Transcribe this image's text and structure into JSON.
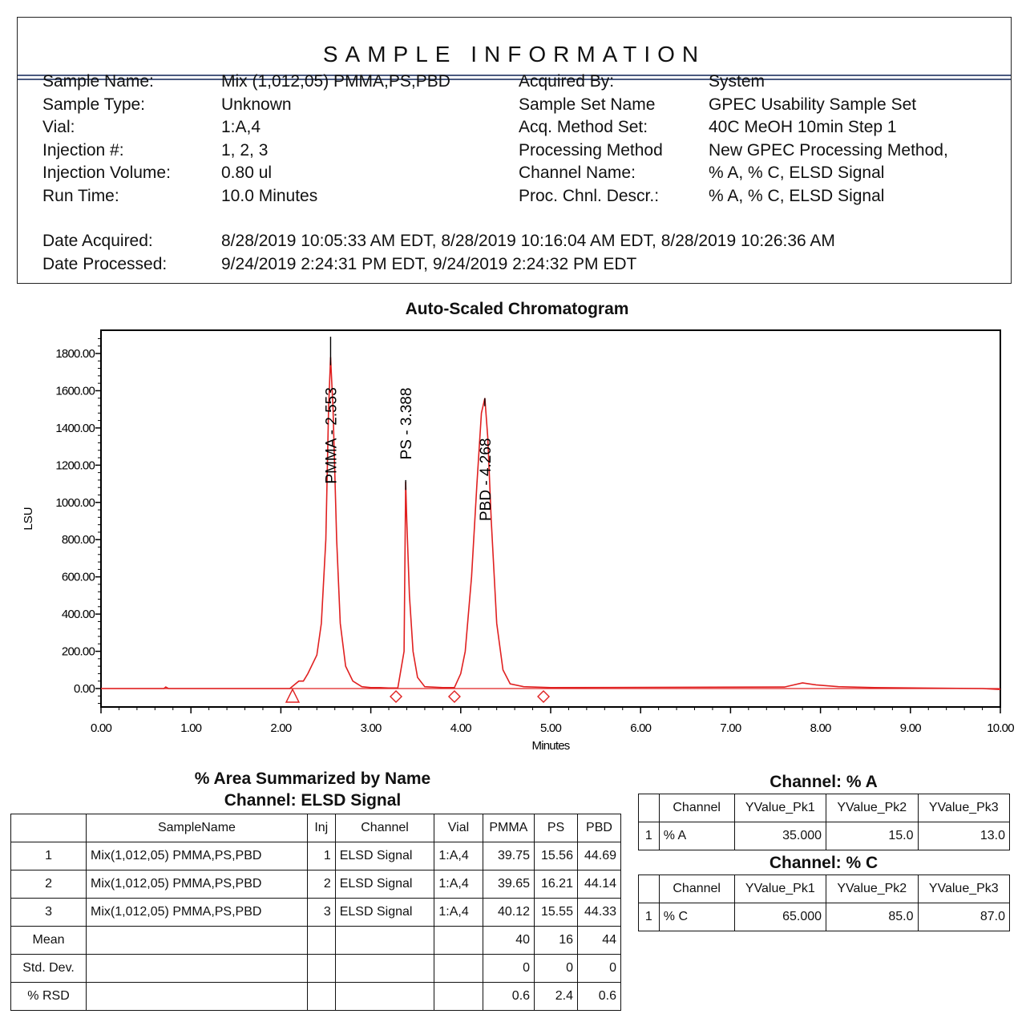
{
  "sample_info": {
    "title": "SAMPLE INFORMATION",
    "left": [
      {
        "label": "Sample Name:",
        "value": "Mix (1,012,05) PMMA,PS,PBD"
      },
      {
        "label": "Sample Type:",
        "value": "Unknown"
      },
      {
        "label": "Vial:",
        "value": "1:A,4"
      },
      {
        "label": "Injection #:",
        "value": "1, 2, 3"
      },
      {
        "label": "Injection Volume:",
        "value": "0.80 ul"
      },
      {
        "label": "Run Time:",
        "value": "10.0 Minutes"
      }
    ],
    "right": [
      {
        "label": "Acquired By:",
        "value": "System"
      },
      {
        "label": "Sample Set Name",
        "value": "GPEC Usability Sample Set"
      },
      {
        "label": "Acq. Method Set:",
        "value": "40C MeOH 10min Step 1"
      },
      {
        "label": "Processing Method",
        "value": "New GPEC Processing Method,"
      },
      {
        "label": "Channel Name:",
        "value": "% A, % C, ELSD Signal"
      },
      {
        "label": "Proc. Chnl. Descr.:",
        "value": "% A, % C, ELSD Signal"
      }
    ],
    "dates": [
      {
        "label": "Date Acquired:",
        "value": "8/28/2019 10:05:33 AM EDT, 8/28/2019 10:16:04 AM EDT, 8/28/2019 10:26:36 AM"
      },
      {
        "label": "Date Processed:",
        "value": "9/24/2019 2:24:31 PM EDT, 9/24/2019 2:24:32 PM EDT"
      }
    ]
  },
  "chart_data": {
    "type": "line",
    "title": "Auto-Scaled Chromatogram",
    "xlabel": "Minutes",
    "ylabel": "LSU",
    "xlim": [
      0,
      10
    ],
    "ylim": [
      -100,
      1950
    ],
    "x_ticks": [
      "0.00",
      "1.00",
      "2.00",
      "3.00",
      "4.00",
      "5.00",
      "6.00",
      "7.00",
      "8.00",
      "9.00",
      "10.00"
    ],
    "y_ticks": [
      "0.00",
      "200.00",
      "400.00",
      "600.00",
      "800.00",
      "1000.00",
      "1200.00",
      "1400.00",
      "1600.00",
      "1800.00"
    ],
    "grid": false,
    "line_color": "#e02020",
    "series": [
      {
        "name": "ELSD Signal",
        "x": [
          0.0,
          0.7,
          0.72,
          0.75,
          2.1,
          2.2,
          2.25,
          2.3,
          2.4,
          2.45,
          2.5,
          2.53,
          2.553,
          2.58,
          2.62,
          2.66,
          2.72,
          2.8,
          2.9,
          3.0,
          3.1,
          3.2,
          3.3,
          3.37,
          3.388,
          3.4,
          3.43,
          3.47,
          3.52,
          3.6,
          3.8,
          3.93,
          4.0,
          4.05,
          4.12,
          4.18,
          4.23,
          4.268,
          4.3,
          4.34,
          4.4,
          4.47,
          4.55,
          4.7,
          5.0,
          7.6,
          7.8,
          7.95,
          8.2,
          8.6,
          9.8,
          10.0
        ],
        "y": [
          0,
          0,
          8,
          0,
          0,
          40,
          40,
          80,
          180,
          350,
          800,
          1500,
          1780,
          1500,
          800,
          350,
          120,
          40,
          10,
          5,
          5,
          3,
          3,
          200,
          1110,
          900,
          500,
          200,
          60,
          10,
          5,
          5,
          80,
          200,
          600,
          1100,
          1480,
          1560,
          1350,
          900,
          350,
          100,
          25,
          10,
          5,
          8,
          30,
          20,
          10,
          5,
          0,
          -5
        ]
      }
    ],
    "peak_labels": [
      {
        "name": "PMMA",
        "rt": 2.553,
        "label": "PMMA - 2.553"
      },
      {
        "name": "PS",
        "rt": 3.388,
        "label": "PS - 3.388"
      },
      {
        "name": "PBD",
        "rt": 4.268,
        "label": "PBD - 4.268"
      }
    ],
    "integration_markers": [
      {
        "x": 2.13,
        "shape": "triangle"
      },
      {
        "x": 3.28,
        "shape": "diamond"
      },
      {
        "x": 3.93,
        "shape": "diamond"
      },
      {
        "x": 4.92,
        "shape": "diamond"
      }
    ]
  },
  "area_table": {
    "title1": "% Area Summarized by Name",
    "title2": "Channel: ELSD Signal",
    "headers": [
      "",
      "SampleName",
      "Inj",
      "Channel",
      "Vial",
      "PMMA",
      "PS",
      "PBD"
    ],
    "rows": [
      [
        "1",
        "Mix(1,012,05) PMMA,PS,PBD",
        "1",
        "ELSD Signal",
        "1:A,4",
        "39.75",
        "15.56",
        "44.69"
      ],
      [
        "2",
        "Mix(1,012,05) PMMA,PS,PBD",
        "2",
        "ELSD Signal",
        "1:A,4",
        "39.65",
        "16.21",
        "44.14"
      ],
      [
        "3",
        "Mix(1,012,05) PMMA,PS,PBD",
        "3",
        "ELSD Signal",
        "1:A,4",
        "40.12",
        "15.55",
        "44.33"
      ],
      [
        "Mean",
        "",
        "",
        "",
        "",
        "40",
        "16",
        "44"
      ],
      [
        "Std. Dev.",
        "",
        "",
        "",
        "",
        "0",
        "0",
        "0"
      ],
      [
        "% RSD",
        "",
        "",
        "",
        "",
        "0.6",
        "2.4",
        "0.6"
      ]
    ]
  },
  "channel_a_table": {
    "title": "Channel: % A",
    "headers": [
      "",
      "Channel",
      "YValue_Pk1",
      "YValue_Pk2",
      "YValue_Pk3"
    ],
    "rows": [
      [
        "1",
        "% A",
        "35.000",
        "15.0",
        "13.0"
      ]
    ]
  },
  "channel_c_table": {
    "title": "Channel: % C",
    "headers": [
      "",
      "Channel",
      "YValue_Pk1",
      "YValue_Pk2",
      "YValue_Pk3"
    ],
    "rows": [
      [
        "1",
        "% C",
        "65.000",
        "85.0",
        "87.0"
      ]
    ]
  }
}
